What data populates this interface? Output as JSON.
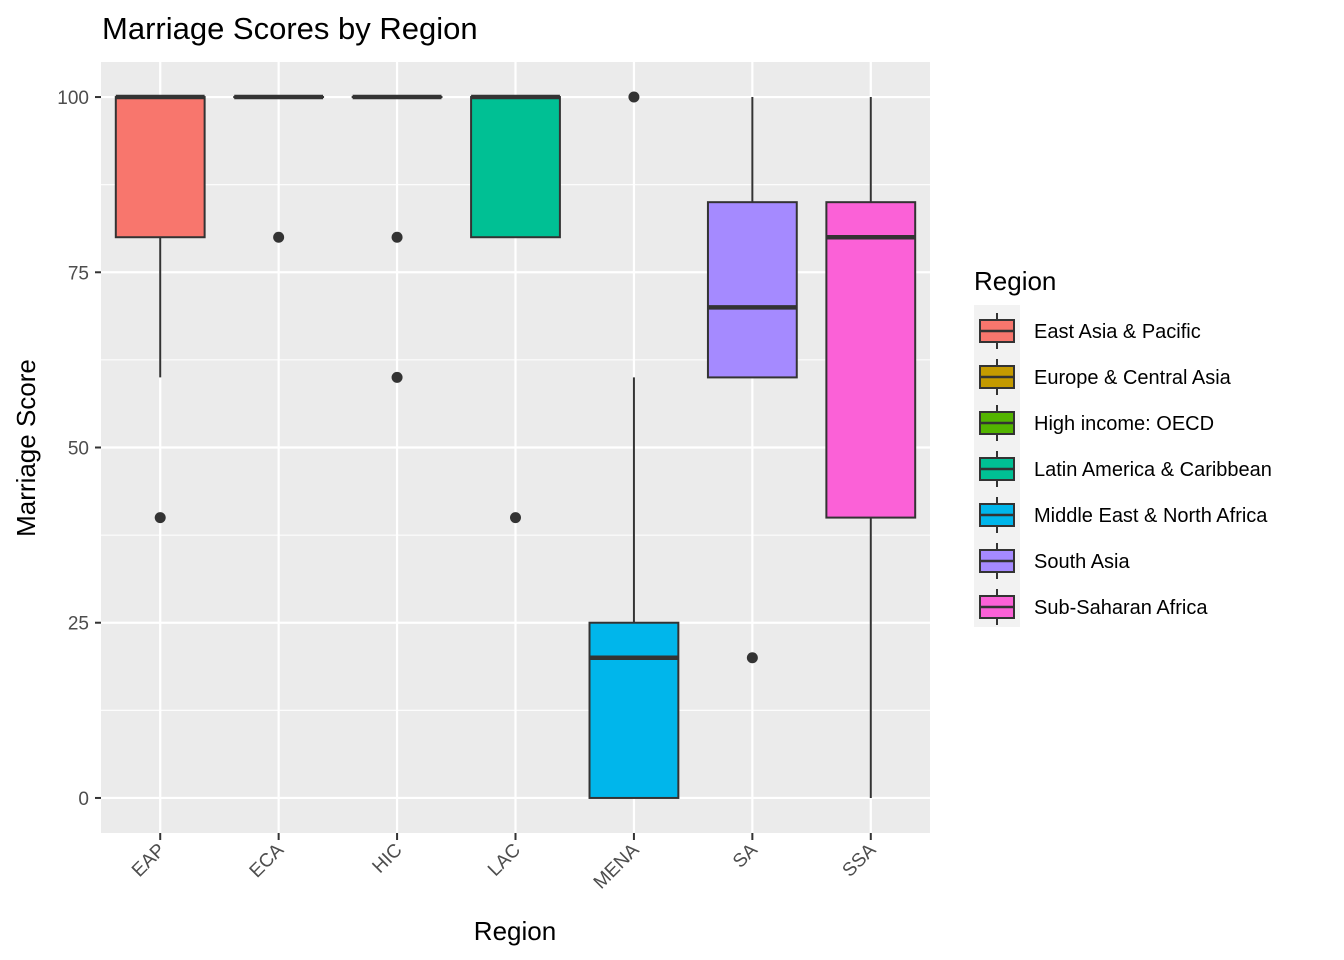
{
  "chart_data": {
    "type": "box",
    "title": "Marriage Scores by Region",
    "xlabel": "Region",
    "ylabel": "Marriage Score",
    "ylim": [
      -5,
      105
    ],
    "yticks": [
      0,
      25,
      50,
      75,
      100
    ],
    "grid": true,
    "legend": {
      "title": "Region",
      "position": "right"
    },
    "categories": [
      "EAP",
      "ECA",
      "HIC",
      "LAC",
      "MENA",
      "SA",
      "SSA"
    ],
    "series": [
      {
        "name": "East Asia & Pacific",
        "category": "EAP",
        "color": "#F8766D",
        "q1": 80,
        "median": 100,
        "q3": 100,
        "whisker_low": 60,
        "whisker_high": 100,
        "outliers": [
          40
        ]
      },
      {
        "name": "Europe & Central Asia",
        "category": "ECA",
        "color": "#C49A00",
        "q1": 100,
        "median": 100,
        "q3": 100,
        "whisker_low": 100,
        "whisker_high": 100,
        "outliers": [
          80
        ]
      },
      {
        "name": "High income: OECD",
        "category": "HIC",
        "color": "#53B400",
        "q1": 100,
        "median": 100,
        "q3": 100,
        "whisker_low": 100,
        "whisker_high": 100,
        "outliers": [
          80,
          60
        ]
      },
      {
        "name": "Latin America & Caribbean",
        "category": "LAC",
        "color": "#00C094",
        "q1": 80,
        "median": 100,
        "q3": 100,
        "whisker_low": 80,
        "whisker_high": 100,
        "outliers": [
          40
        ]
      },
      {
        "name": "Middle East & North Africa",
        "category": "MENA",
        "color": "#00B6EB",
        "q1": 0,
        "median": 20,
        "q3": 25,
        "whisker_low": 0,
        "whisker_high": 60,
        "outliers": [
          100
        ]
      },
      {
        "name": "South Asia",
        "category": "SA",
        "color": "#A58AFF",
        "q1": 60,
        "median": 70,
        "q3": 85,
        "whisker_low": 60,
        "whisker_high": 100,
        "outliers": [
          20
        ]
      },
      {
        "name": "Sub-Saharan Africa",
        "category": "SSA",
        "color": "#FB61D7",
        "q1": 40,
        "median": 80,
        "q3": 85,
        "whisker_low": 0,
        "whisker_high": 100,
        "outliers": []
      }
    ]
  }
}
